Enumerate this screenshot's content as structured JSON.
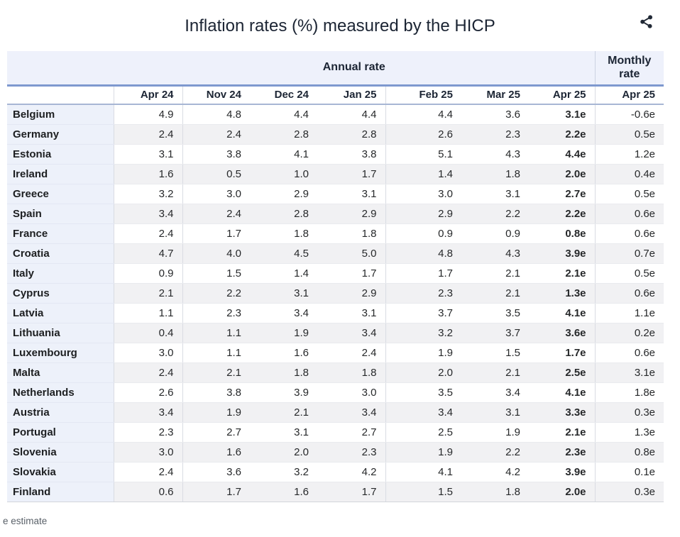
{
  "title": "Inflation rates (%) measured by the HICP",
  "share_icon": "share-icon",
  "table": {
    "group_headers": {
      "annual": "Annual rate",
      "monthly": "Monthly rate"
    },
    "columns": [
      "Apr 24",
      "Nov 24",
      "Dec 24",
      "Jan 25",
      "Feb 25",
      "Mar 25",
      "Apr 25",
      "Apr 25"
    ],
    "rows": [
      {
        "country": "Belgium",
        "values": [
          "4.9",
          "4.8",
          "4.4",
          "4.4",
          "4.4",
          "3.6",
          "3.1e",
          "-0.6e"
        ]
      },
      {
        "country": "Germany",
        "values": [
          "2.4",
          "2.4",
          "2.8",
          "2.8",
          "2.6",
          "2.3",
          "2.2e",
          "0.5e"
        ]
      },
      {
        "country": "Estonia",
        "values": [
          "3.1",
          "3.8",
          "4.1",
          "3.8",
          "5.1",
          "4.3",
          "4.4e",
          "1.2e"
        ]
      },
      {
        "country": "Ireland",
        "values": [
          "1.6",
          "0.5",
          "1.0",
          "1.7",
          "1.4",
          "1.8",
          "2.0e",
          "0.4e"
        ]
      },
      {
        "country": "Greece",
        "values": [
          "3.2",
          "3.0",
          "2.9",
          "3.1",
          "3.0",
          "3.1",
          "2.7e",
          "0.5e"
        ]
      },
      {
        "country": "Spain",
        "values": [
          "3.4",
          "2.4",
          "2.8",
          "2.9",
          "2.9",
          "2.2",
          "2.2e",
          "0.6e"
        ]
      },
      {
        "country": "France",
        "values": [
          "2.4",
          "1.7",
          "1.8",
          "1.8",
          "0.9",
          "0.9",
          "0.8e",
          "0.6e"
        ]
      },
      {
        "country": "Croatia",
        "values": [
          "4.7",
          "4.0",
          "4.5",
          "5.0",
          "4.8",
          "4.3",
          "3.9e",
          "0.7e"
        ]
      },
      {
        "country": "Italy",
        "values": [
          "0.9",
          "1.5",
          "1.4",
          "1.7",
          "1.7",
          "2.1",
          "2.1e",
          "0.5e"
        ]
      },
      {
        "country": "Cyprus",
        "values": [
          "2.1",
          "2.2",
          "3.1",
          "2.9",
          "2.3",
          "2.1",
          "1.3e",
          "0.6e"
        ]
      },
      {
        "country": "Latvia",
        "values": [
          "1.1",
          "2.3",
          "3.4",
          "3.1",
          "3.7",
          "3.5",
          "4.1e",
          "1.1e"
        ]
      },
      {
        "country": "Lithuania",
        "values": [
          "0.4",
          "1.1",
          "1.9",
          "3.4",
          "3.2",
          "3.7",
          "3.6e",
          "0.2e"
        ]
      },
      {
        "country": "Luxembourg",
        "values": [
          "3.0",
          "1.1",
          "1.6",
          "2.4",
          "1.9",
          "1.5",
          "1.7e",
          "0.6e"
        ]
      },
      {
        "country": "Malta",
        "values": [
          "2.4",
          "2.1",
          "1.8",
          "1.8",
          "2.0",
          "2.1",
          "2.5e",
          "3.1e"
        ]
      },
      {
        "country": "Netherlands",
        "values": [
          "2.6",
          "3.8",
          "3.9",
          "3.0",
          "3.5",
          "3.4",
          "4.1e",
          "1.8e"
        ]
      },
      {
        "country": "Austria",
        "values": [
          "3.4",
          "1.9",
          "2.1",
          "3.4",
          "3.4",
          "3.1",
          "3.3e",
          "0.3e"
        ]
      },
      {
        "country": "Portugal",
        "values": [
          "2.3",
          "2.7",
          "3.1",
          "2.7",
          "2.5",
          "1.9",
          "2.1e",
          "1.3e"
        ]
      },
      {
        "country": "Slovenia",
        "values": [
          "3.0",
          "1.6",
          "2.0",
          "2.3",
          "1.9",
          "2.2",
          "2.3e",
          "0.8e"
        ]
      },
      {
        "country": "Slovakia",
        "values": [
          "2.4",
          "3.6",
          "3.2",
          "4.2",
          "4.1",
          "4.2",
          "3.9e",
          "0.1e"
        ]
      },
      {
        "country": "Finland",
        "values": [
          "0.6",
          "1.7",
          "1.6",
          "1.7",
          "1.5",
          "1.8",
          "2.0e",
          "0.3e"
        ]
      }
    ]
  },
  "footnote": "e estimate",
  "colors": {
    "header_band": "#eef1fb",
    "band_underline": "#7e99cf",
    "colhead_underline": "#a7b6d4",
    "country_column": "#edf1fa",
    "row_stripe": "#f1f1f3",
    "heading_text": "#1c2534",
    "body_text": "#26282a",
    "footnote_text": "#5a6169",
    "icon": "#212936"
  }
}
